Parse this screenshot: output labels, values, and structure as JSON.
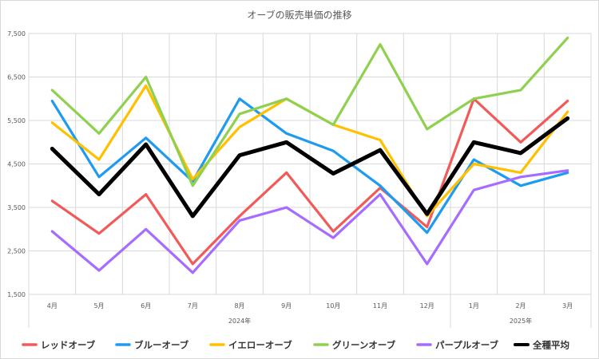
{
  "chart_data": {
    "type": "line",
    "title": "オーブの販売単価の推移",
    "categories": [
      "4月",
      "5月",
      "6月",
      "7月",
      "8月",
      "9月",
      "10月",
      "11月",
      "12月",
      "1月",
      "2月",
      "3月"
    ],
    "year_groups": [
      {
        "label": "2024年",
        "start": 0,
        "end": 8
      },
      {
        "label": "2025年",
        "start": 9,
        "end": 11
      }
    ],
    "ylim": [
      1500,
      7500
    ],
    "yticks": [
      1500,
      2500,
      3500,
      4500,
      5500,
      6500,
      7500
    ],
    "ytick_labels": [
      "1,500",
      "2,500",
      "3,500",
      "4,500",
      "5,500",
      "6,500",
      "7,500"
    ],
    "grid": true,
    "legend_position": "bottom",
    "series": [
      {
        "name": "レッドオーブ",
        "color": "#f25a5a",
        "width": 3.2,
        "values": [
          3650,
          2900,
          3800,
          2200,
          3300,
          4300,
          2950,
          3950,
          3050,
          6000,
          5000,
          5950
        ]
      },
      {
        "name": "ブルーオーブ",
        "color": "#1e9bf0",
        "width": 3.2,
        "values": [
          5950,
          4200,
          5100,
          4100,
          6000,
          5200,
          4800,
          4000,
          2920,
          4600,
          4000,
          4300
        ]
      },
      {
        "name": "イエローオーブ",
        "color": "#ffc000",
        "width": 3.2,
        "values": [
          5450,
          4600,
          6300,
          4150,
          5350,
          6000,
          5400,
          5050,
          3300,
          4500,
          4300,
          5700
        ]
      },
      {
        "name": "グリーンオーブ",
        "color": "#8fd14f",
        "width": 3.2,
        "values": [
          6200,
          5200,
          6500,
          4000,
          5650,
          6000,
          5400,
          7250,
          5300,
          6000,
          6200,
          7400
        ]
      },
      {
        "name": "パープルオーブ",
        "color": "#a66cff",
        "width": 3.2,
        "values": [
          2950,
          2050,
          3000,
          2000,
          3200,
          3500,
          2800,
          3800,
          2200,
          3900,
          4200,
          4350
        ]
      },
      {
        "name": "全種平均",
        "color": "#000000",
        "width": 5,
        "values": [
          4850,
          3800,
          4950,
          3300,
          4700,
          5000,
          4280,
          4820,
          3350,
          5000,
          4750,
          5550
        ]
      }
    ]
  }
}
